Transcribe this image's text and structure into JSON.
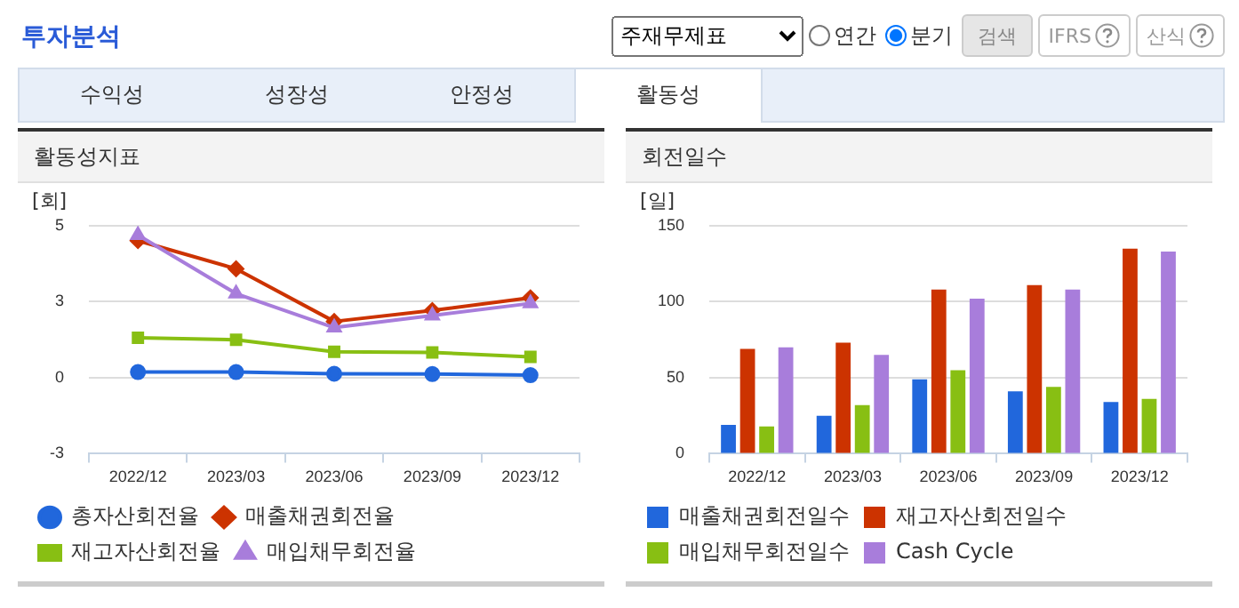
{
  "chart_data": [
    {
      "type": "other",
      "title": "투자분석",
      "annotations": [
        "주재무제표",
        "연간",
        "분기",
        "검색",
        "IFRS",
        "산식",
        "수익성",
        "성장성",
        "안정성",
        "활동성"
      ]
    },
    {
      "type": "line",
      "title": "활동성지표",
      "ylabel": "[회]",
      "categories": [
        "2022/12",
        "2023/03",
        "2023/06",
        "2023/09",
        "2023/12"
      ],
      "series": [
        {
          "name": "총자산회전율",
          "color": "#2167dc",
          "marker": "circle",
          "values": [
            0.2,
            0.2,
            0.14,
            0.13,
            0.09
          ]
        },
        {
          "name": "매출채권회전율",
          "color": "#cc3300",
          "marker": "diamond",
          "values": [
            4.87,
            3.87,
            2.0,
            2.39,
            2.84
          ]
        },
        {
          "name": "재고자산회전율",
          "color": "#88bf13",
          "marker": "square",
          "values": [
            1.42,
            1.35,
            0.92,
            0.9,
            0.74
          ]
        },
        {
          "name": "매입채무회전율",
          "color": "#a87ddb",
          "marker": "triangle",
          "values": [
            5.07,
            2.99,
            1.78,
            2.21,
            2.64
          ]
        }
      ],
      "ylim": [
        -2.7,
        5.4
      ],
      "yticks": [
        {
          "value": -2.7,
          "label": "-3"
        },
        {
          "value": 0,
          "label": "0"
        },
        {
          "value": 2.7,
          "label": "3"
        },
        {
          "value": 5.4,
          "label": "5"
        }
      ],
      "grid": "y",
      "legend": "bottom"
    },
    {
      "type": "bar",
      "title": "회전일수",
      "ylabel": "[일]",
      "categories": [
        "2022/12",
        "2023/03",
        "2023/06",
        "2023/09",
        "2023/12"
      ],
      "series": [
        {
          "name": "매출채권회전일수",
          "color": "#2167dc",
          "values": [
            19,
            25,
            49,
            41,
            34
          ]
        },
        {
          "name": "재고자산회전일수",
          "color": "#cc3300",
          "values": [
            69,
            73,
            108,
            111,
            135
          ]
        },
        {
          "name": "매입채무회전일수",
          "color": "#88bf13",
          "values": [
            18,
            32,
            55,
            44,
            36
          ]
        },
        {
          "name": "Cash Cycle",
          "color": "#a87ddb",
          "values": [
            70,
            65,
            102,
            108,
            133
          ]
        }
      ],
      "ylim": [
        0,
        150
      ],
      "yticks": [
        0,
        50,
        100,
        150
      ],
      "grid": "y",
      "legend": "bottom"
    }
  ]
}
